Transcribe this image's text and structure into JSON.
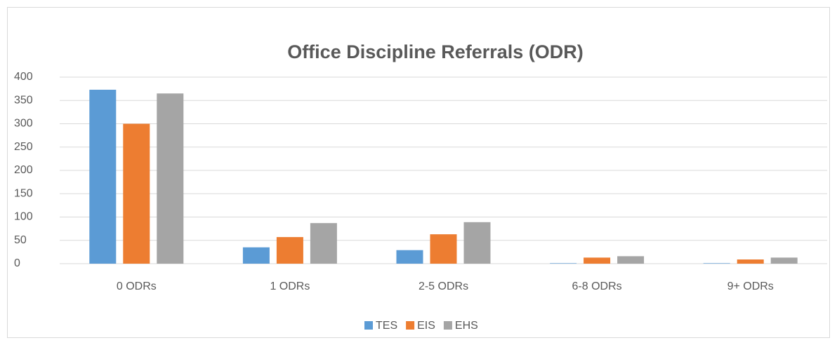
{
  "chart_data": {
    "type": "bar",
    "title": "Office Discipline Referrals (ODR)",
    "categories": [
      "0 ODRs",
      "1 ODRs",
      "2-5 ODRs",
      "6-8 ODRs",
      "9+ ODRs"
    ],
    "series": [
      {
        "name": "TES",
        "color": "#5b9bd5",
        "values": [
          373,
          35,
          29,
          1,
          1
        ]
      },
      {
        "name": "EIS",
        "color": "#ed7d31",
        "values": [
          300,
          57,
          63,
          13,
          9
        ]
      },
      {
        "name": "EHS",
        "color": "#a5a5a5",
        "values": [
          365,
          87,
          89,
          16,
          13
        ]
      }
    ],
    "ylim": [
      0,
      400
    ],
    "yticks": [
      0,
      50,
      100,
      150,
      200,
      250,
      300,
      350,
      400
    ],
    "grid": true,
    "legend": "bottom"
  }
}
